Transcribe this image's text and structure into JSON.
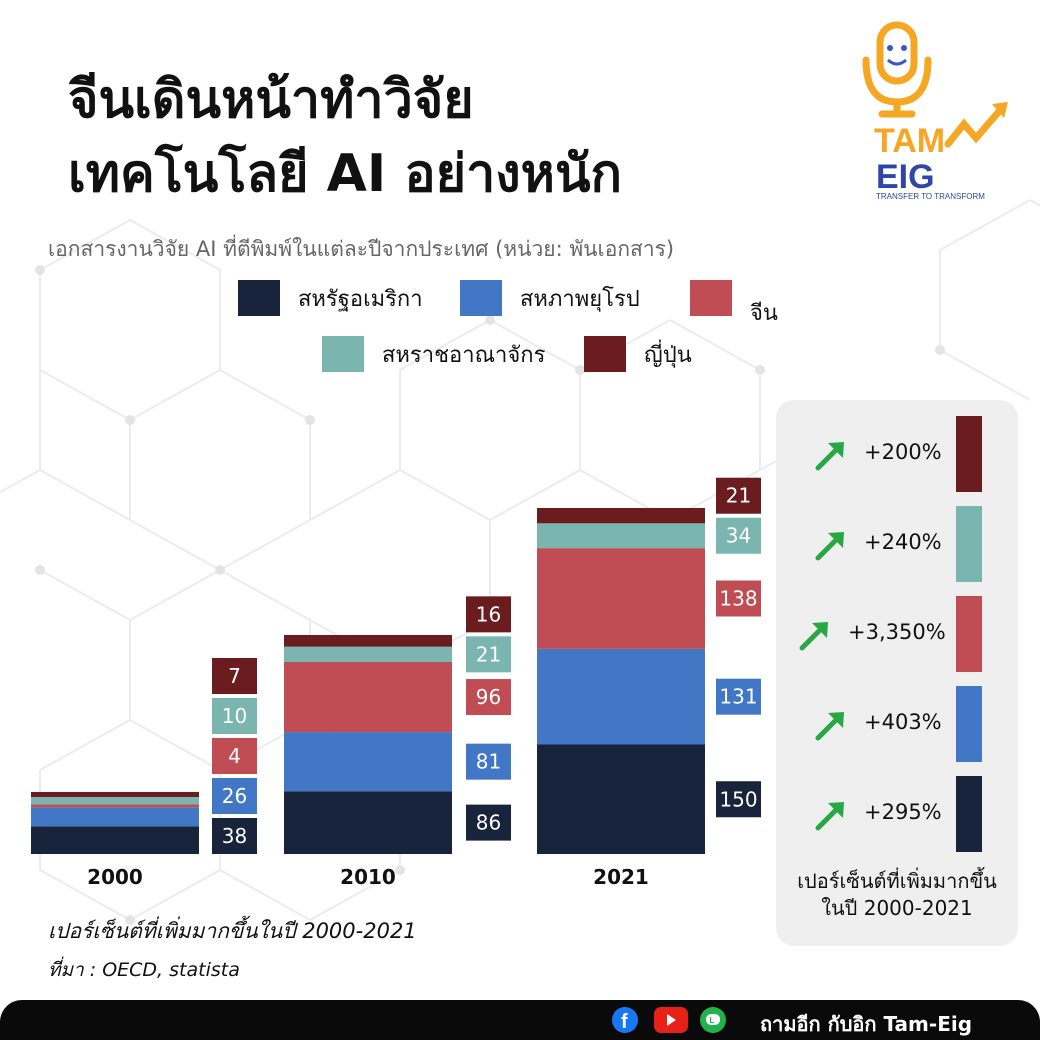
{
  "title_line1": "จีนเดินหน้าทำวิจัย",
  "title_line2": "เทคโนโลยี AI อย่างหนัก",
  "subtitle": "เอกสารงานวิจัย AI ที่ตีพิมพ์ในแต่ละปีจากประเทศ (หน่วย: พันเอกสาร)",
  "logo": {
    "line1": "TAM",
    "line2": "EIG",
    "tagline": "TRANSFER TO TRANSFORM"
  },
  "colors": {
    "usa": "#17243b",
    "eu": "#4277c6",
    "china": "#bf4d53",
    "uk": "#7bb5b0",
    "japan": "#6b1c1e",
    "arrow": "#27a844"
  },
  "chart_data": {
    "type": "bar",
    "stacked": true,
    "categories": [
      "2000",
      "2010",
      "2021"
    ],
    "series": [
      {
        "name": "สหรัฐอเมริกา",
        "key": "usa",
        "values": [
          38,
          86,
          150
        ]
      },
      {
        "name": "สหภาพยุโรป",
        "key": "eu",
        "values": [
          26,
          81,
          131
        ]
      },
      {
        "name": "จีน",
        "key": "china",
        "values": [
          4,
          96,
          138
        ]
      },
      {
        "name": "สหราชอาณาจักร",
        "key": "uk",
        "values": [
          10,
          21,
          34
        ]
      },
      {
        "name": "ญี่ปุ่น",
        "key": "japan",
        "values": [
          7,
          16,
          21
        ]
      }
    ],
    "growth_title": "เปอร์เซ็นต์ที่เพิ่มมากขึ้นในปี 2000-2021",
    "growth": [
      {
        "key": "japan",
        "label": "+200%"
      },
      {
        "key": "uk",
        "label": "+240%"
      },
      {
        "key": "china",
        "label": "+3,350%"
      },
      {
        "key": "eu",
        "label": "+403%"
      },
      {
        "key": "usa",
        "label": "+295%"
      }
    ]
  },
  "growth_caption_line1": "เปอร์เซ็นต์ที่เพิ่มมากขึ้น",
  "growth_caption_line2": "ในปี 2000-2021",
  "note": "เปอร์เซ็นต์ที่เพิ่มมากขึ้นในปี 2000-2021",
  "source": "ที่มา : OECD, statista",
  "footer": {
    "text": "ถามอีก กับอิก Tam-Eig",
    "icons": [
      "facebook-icon",
      "youtube-icon",
      "line-icon"
    ]
  }
}
